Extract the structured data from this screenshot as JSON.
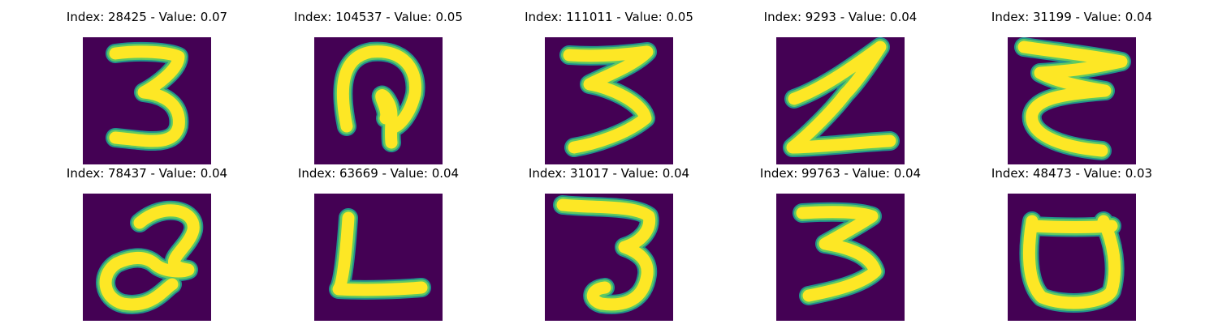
{
  "figure": {
    "background": "#ffffff",
    "colormap": "viridis",
    "cells": [
      {
        "title": "Index: 28425 - Value: 0.07",
        "glyph": "3-open",
        "icon": "handwritten-three-image"
      },
      {
        "title": "Index: 104537 - Value: 0.05",
        "glyph": "hook",
        "icon": "handwritten-hook-image"
      },
      {
        "title": "Index: 111011 - Value: 0.05",
        "glyph": "3-sharp",
        "icon": "handwritten-three-sharp-image"
      },
      {
        "title": "Index: 9293 - Value: 0.04",
        "glyph": "z",
        "icon": "handwritten-z-image"
      },
      {
        "title": "Index: 31199 - Value: 0.04",
        "glyph": "epsilon",
        "icon": "handwritten-epsilon-image"
      },
      {
        "title": "Index: 78437 - Value: 0.04",
        "glyph": "swirl",
        "icon": "handwritten-swirl-image"
      },
      {
        "title": "Index: 63669 - Value: 0.04",
        "glyph": "L",
        "icon": "handwritten-l-image"
      },
      {
        "title": "Index: 31017 - Value: 0.04",
        "glyph": "3-thin",
        "icon": "handwritten-three-thin-image"
      },
      {
        "title": "Index: 99763 - Value: 0.04",
        "glyph": "3-bold",
        "icon": "handwritten-three-bold-image"
      },
      {
        "title": "Index: 48473 - Value: 0.03",
        "glyph": "cup",
        "icon": "handwritten-cup-image"
      }
    ],
    "colors": {
      "image_bg": "#440154",
      "stroke_edge": "#21918c",
      "stroke_mid": "#5ec962",
      "stroke_core": "#fde725"
    }
  }
}
